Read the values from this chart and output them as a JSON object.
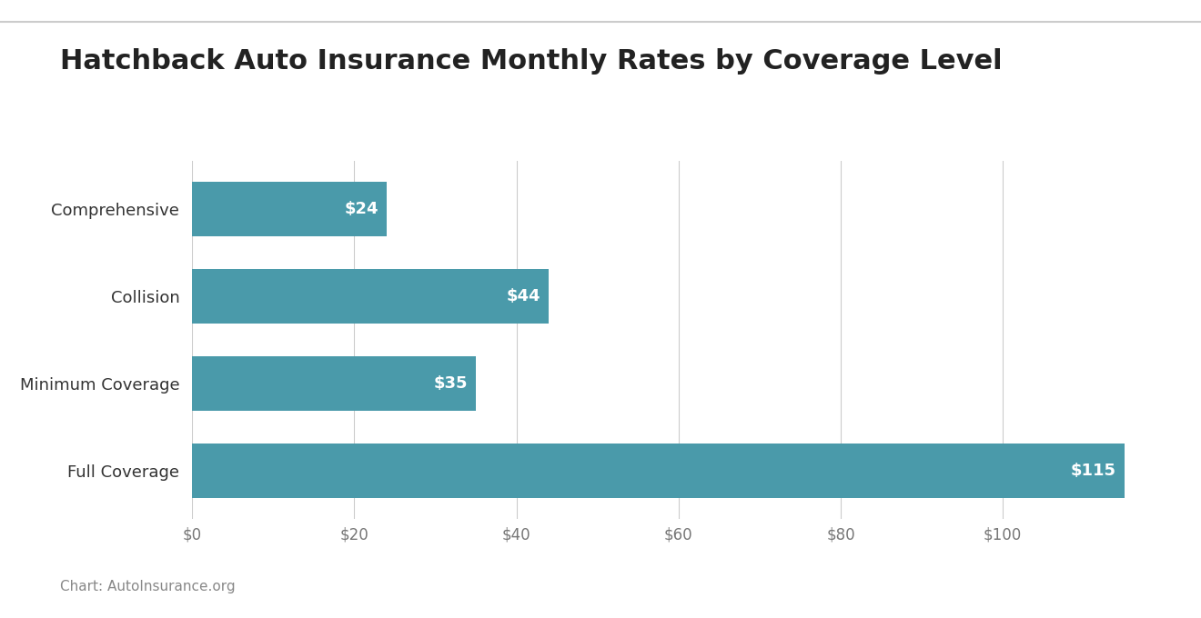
{
  "title": "Hatchback Auto Insurance Monthly Rates by Coverage Level",
  "categories": [
    "Comprehensive",
    "Collision",
    "Minimum Coverage",
    "Full Coverage"
  ],
  "values": [
    24,
    44,
    35,
    115
  ],
  "bar_color": "#4a9aaa",
  "bar_height": 0.62,
  "xlim": [
    0,
    120
  ],
  "xticks": [
    0,
    20,
    40,
    60,
    80,
    100
  ],
  "xtick_labels": [
    "$0",
    "$20",
    "$40",
    "$60",
    "$80",
    "$100"
  ],
  "label_color": "#ffffff",
  "label_fontsize": 13,
  "title_fontsize": 22,
  "ytick_fontsize": 13,
  "xtick_fontsize": 12,
  "background_color": "#ffffff",
  "grid_color": "#cccccc",
  "top_line_color": "#cccccc",
  "caption_text": "Chart: AutoInsurance.org",
  "caption_fontsize": 11,
  "caption_color": "#888888"
}
